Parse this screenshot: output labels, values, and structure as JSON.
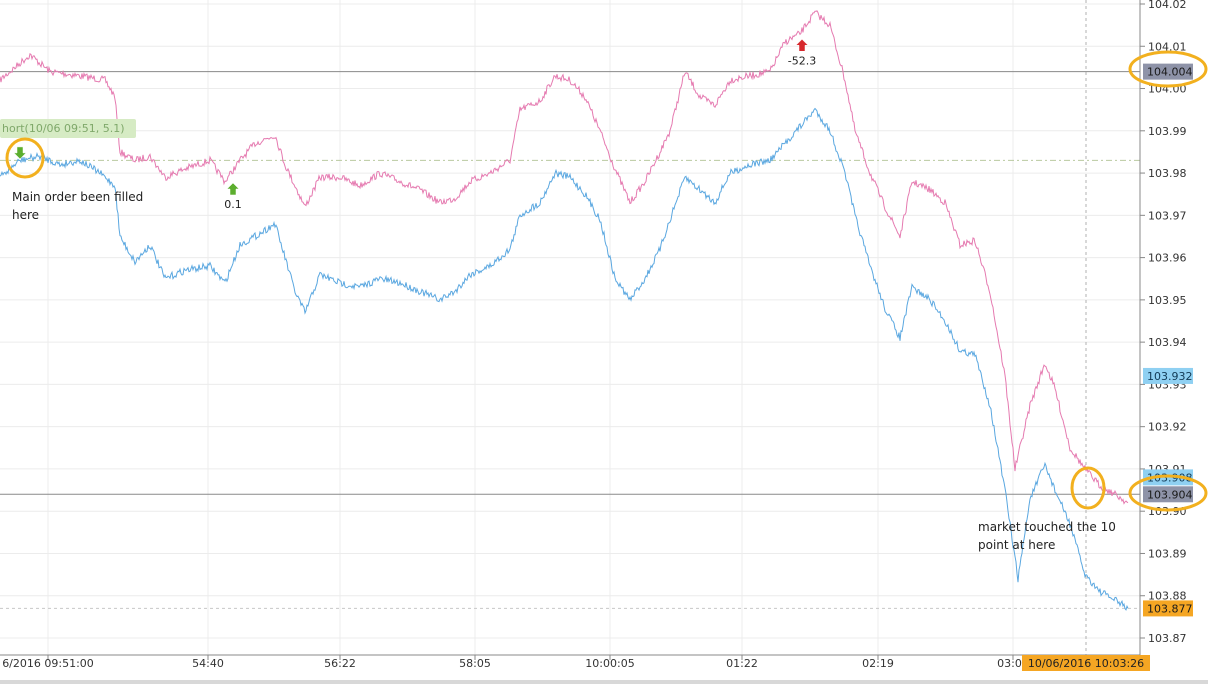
{
  "chart_data": {
    "type": "line",
    "y_ticks": [
      "104.02",
      "104.01",
      "104.00",
      "103.99",
      "103.98",
      "103.97",
      "103.96",
      "103.95",
      "103.94",
      "103.93",
      "103.92",
      "103.91",
      "103.90",
      "103.89",
      "103.88",
      "103.87"
    ],
    "ylim": [
      103.87,
      104.02
    ],
    "x_tick_labels": [
      "6/2016 09:51:00",
      "54:40",
      "56:22",
      "58:05",
      "10:00:05",
      "01:22",
      "02:19",
      "03:07"
    ],
    "crosshair_x_label": "10/06/2016 10:03:26",
    "price_tags": [
      {
        "value": "104.004",
        "kind": "line"
      },
      {
        "value": "103.932",
        "kind": "blue"
      },
      {
        "value": "103.908",
        "kind": "blue"
      },
      {
        "value": "103.904",
        "kind": "line"
      },
      {
        "value": "103.877",
        "kind": "orange"
      }
    ],
    "horizontal_lines": [
      104.004,
      103.904
    ],
    "entry_line": 103.983,
    "series": [
      {
        "color": "#e57ab0",
        "points": [
          [
            0,
            104.002
          ],
          [
            20,
            104.006
          ],
          [
            30,
            104.008
          ],
          [
            50,
            104.004
          ],
          [
            80,
            104.003
          ],
          [
            105,
            104.002
          ],
          [
            115,
            103.998
          ],
          [
            120,
            103.985
          ],
          [
            135,
            103.983
          ],
          [
            150,
            103.984
          ],
          [
            165,
            103.979
          ],
          [
            185,
            103.981
          ],
          [
            210,
            103.983
          ],
          [
            225,
            103.978
          ],
          [
            240,
            103.983
          ],
          [
            255,
            103.987
          ],
          [
            275,
            103.989
          ],
          [
            285,
            103.982
          ],
          [
            295,
            103.977
          ],
          [
            305,
            103.972
          ],
          [
            320,
            103.979
          ],
          [
            340,
            103.979
          ],
          [
            360,
            103.977
          ],
          [
            380,
            103.98
          ],
          [
            400,
            103.978
          ],
          [
            420,
            103.976
          ],
          [
            440,
            103.973
          ],
          [
            455,
            103.974
          ],
          [
            470,
            103.978
          ],
          [
            490,
            103.98
          ],
          [
            510,
            103.983
          ],
          [
            520,
            103.995
          ],
          [
            540,
            103.997
          ],
          [
            555,
            104.003
          ],
          [
            570,
            104.002
          ],
          [
            585,
            103.998
          ],
          [
            600,
            103.99
          ],
          [
            615,
            103.981
          ],
          [
            630,
            103.973
          ],
          [
            645,
            103.978
          ],
          [
            660,
            103.985
          ],
          [
            670,
            103.99
          ],
          [
            685,
            104.004
          ],
          [
            700,
            103.998
          ],
          [
            715,
            103.996
          ],
          [
            730,
            104.002
          ],
          [
            750,
            104.003
          ],
          [
            770,
            104.004
          ],
          [
            785,
            104.011
          ],
          [
            800,
            104.013
          ],
          [
            815,
            104.018
          ],
          [
            830,
            104.015
          ],
          [
            845,
            104.002
          ],
          [
            855,
            103.99
          ],
          [
            870,
            103.98
          ],
          [
            885,
            103.972
          ],
          [
            900,
            103.965
          ],
          [
            912,
            103.978
          ],
          [
            930,
            103.976
          ],
          [
            945,
            103.973
          ],
          [
            960,
            103.963
          ],
          [
            975,
            103.964
          ],
          [
            990,
            103.952
          ],
          [
            1005,
            103.932
          ],
          [
            1015,
            103.91
          ],
          [
            1030,
            103.925
          ],
          [
            1045,
            103.935
          ],
          [
            1055,
            103.929
          ],
          [
            1070,
            103.915
          ],
          [
            1085,
            103.91
          ],
          [
            1100,
            103.906
          ],
          [
            1115,
            103.904
          ],
          [
            1128,
            103.902
          ]
        ]
      },
      {
        "color": "#5aa7e0",
        "points": [
          [
            0,
            103.979
          ],
          [
            20,
            103.983
          ],
          [
            40,
            103.984
          ],
          [
            60,
            103.982
          ],
          [
            80,
            103.983
          ],
          [
            100,
            103.98
          ],
          [
            115,
            103.977
          ],
          [
            120,
            103.965
          ],
          [
            135,
            103.959
          ],
          [
            150,
            103.963
          ],
          [
            165,
            103.955
          ],
          [
            185,
            103.957
          ],
          [
            210,
            103.958
          ],
          [
            225,
            103.954
          ],
          [
            240,
            103.963
          ],
          [
            255,
            103.965
          ],
          [
            275,
            103.968
          ],
          [
            285,
            103.96
          ],
          [
            295,
            103.952
          ],
          [
            305,
            103.947
          ],
          [
            320,
            103.956
          ],
          [
            340,
            103.954
          ],
          [
            360,
            103.953
          ],
          [
            380,
            103.955
          ],
          [
            400,
            103.954
          ],
          [
            420,
            103.952
          ],
          [
            440,
            103.95
          ],
          [
            455,
            103.952
          ],
          [
            470,
            103.956
          ],
          [
            490,
            103.958
          ],
          [
            510,
            103.962
          ],
          [
            520,
            103.97
          ],
          [
            540,
            103.973
          ],
          [
            555,
            103.98
          ],
          [
            570,
            103.979
          ],
          [
            585,
            103.975
          ],
          [
            600,
            103.969
          ],
          [
            615,
            103.955
          ],
          [
            630,
            103.95
          ],
          [
            645,
            103.955
          ],
          [
            660,
            103.962
          ],
          [
            670,
            103.969
          ],
          [
            685,
            103.979
          ],
          [
            700,
            103.976
          ],
          [
            715,
            103.973
          ],
          [
            730,
            103.98
          ],
          [
            750,
            103.982
          ],
          [
            770,
            103.983
          ],
          [
            785,
            103.987
          ],
          [
            800,
            103.991
          ],
          [
            815,
            103.995
          ],
          [
            830,
            103.99
          ],
          [
            845,
            103.98
          ],
          [
            855,
            103.97
          ],
          [
            870,
            103.958
          ],
          [
            885,
            103.948
          ],
          [
            900,
            103.941
          ],
          [
            912,
            103.953
          ],
          [
            930,
            103.95
          ],
          [
            945,
            103.945
          ],
          [
            960,
            103.938
          ],
          [
            975,
            103.937
          ],
          [
            990,
            103.925
          ],
          [
            1005,
            103.905
          ],
          [
            1018,
            103.884
          ],
          [
            1030,
            103.903
          ],
          [
            1045,
            103.911
          ],
          [
            1055,
            103.905
          ],
          [
            1070,
            103.897
          ],
          [
            1085,
            103.885
          ],
          [
            1100,
            103.881
          ],
          [
            1115,
            103.879
          ],
          [
            1128,
            103.877
          ]
        ]
      }
    ],
    "trades": [
      {
        "label": "",
        "direction": "down",
        "color": "#5cae2e",
        "x": 20,
        "y": 103.985
      },
      {
        "label": "0.1",
        "direction": "up",
        "color": "#5cae2e",
        "x": 233,
        "y": 103.976
      },
      {
        "label": "-52.3",
        "direction": "up",
        "color": "#d6282c",
        "x": 802,
        "y": 104.01
      }
    ],
    "order_tag": "hort(10/06 09:51, 5.1)",
    "annotations": [
      {
        "text": "Main order been filled here"
      },
      {
        "text": "market touched the 10 point at here"
      }
    ]
  }
}
